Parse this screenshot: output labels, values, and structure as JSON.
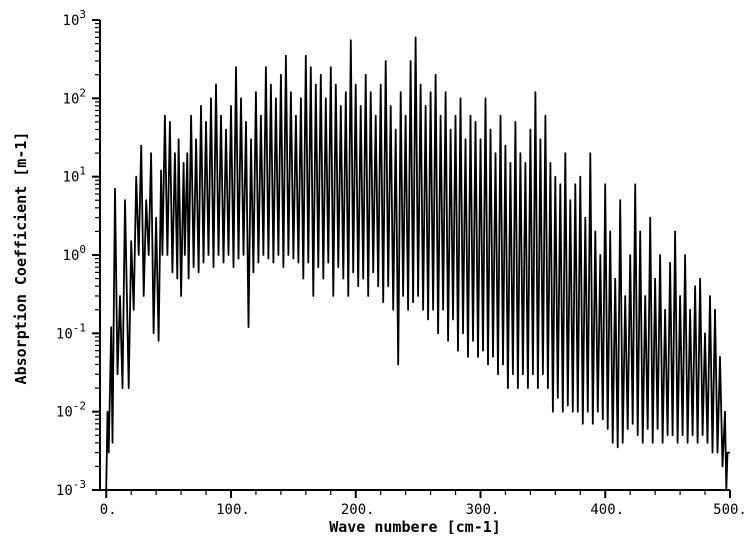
{
  "chart_data": {
    "type": "line",
    "title": "",
    "xlabel": "Wave numbere [cm-1]",
    "ylabel": "Absorption Coefficient [m-1]",
    "xlim": [
      -5,
      500
    ],
    "ylim": [
      0.001,
      1000
    ],
    "yscale": "log",
    "grid": false,
    "x_ticks": [
      {
        "value": 0,
        "label": "0."
      },
      {
        "value": 100,
        "label": "100."
      },
      {
        "value": 200,
        "label": "200."
      },
      {
        "value": 300,
        "label": "300."
      },
      {
        "value": 400,
        "label": "400."
      },
      {
        "value": 500,
        "label": "500."
      }
    ],
    "y_ticks": [
      {
        "value": 0.001,
        "base": "10",
        "exp": "-3"
      },
      {
        "value": 0.01,
        "base": "10",
        "exp": "-2"
      },
      {
        "value": 0.1,
        "base": "10",
        "exp": "-1"
      },
      {
        "value": 1,
        "base": "10",
        "exp": "0"
      },
      {
        "value": 10,
        "base": "10",
        "exp": "1"
      },
      {
        "value": 100,
        "base": "10",
        "exp": "2"
      },
      {
        "value": 1000,
        "base": "10",
        "exp": "3"
      }
    ],
    "series": [
      {
        "color": "#000000",
        "peaks": [
          {
            "x": 1,
            "y": 0.01
          },
          {
            "x": 4,
            "y": 0.12
          },
          {
            "x": 7,
            "y": 7
          },
          {
            "x": 11,
            "y": 0.3
          },
          {
            "x": 15,
            "y": 5
          },
          {
            "x": 20,
            "y": 1.5
          },
          {
            "x": 24,
            "y": 10
          },
          {
            "x": 28,
            "y": 25
          },
          {
            "x": 32,
            "y": 5
          },
          {
            "x": 36,
            "y": 20
          },
          {
            "x": 40,
            "y": 3
          },
          {
            "x": 44,
            "y": 12
          },
          {
            "x": 47,
            "y": 60
          },
          {
            "x": 51,
            "y": 50
          },
          {
            "x": 55,
            "y": 20
          },
          {
            "x": 58,
            "y": 30
          },
          {
            "x": 62,
            "y": 15
          },
          {
            "x": 65,
            "y": 20
          },
          {
            "x": 68,
            "y": 60
          },
          {
            "x": 72,
            "y": 30
          },
          {
            "x": 76,
            "y": 80
          },
          {
            "x": 80,
            "y": 50
          },
          {
            "x": 84,
            "y": 100
          },
          {
            "x": 88,
            "y": 150
          },
          {
            "x": 92,
            "y": 60
          },
          {
            "x": 96,
            "y": 40
          },
          {
            "x": 100,
            "y": 80
          },
          {
            "x": 104,
            "y": 250
          },
          {
            "x": 108,
            "y": 100
          },
          {
            "x": 112,
            "y": 50
          },
          {
            "x": 116,
            "y": 30
          },
          {
            "x": 120,
            "y": 120
          },
          {
            "x": 124,
            "y": 60
          },
          {
            "x": 128,
            "y": 250
          },
          {
            "x": 132,
            "y": 150
          },
          {
            "x": 136,
            "y": 100
          },
          {
            "x": 140,
            "y": 200
          },
          {
            "x": 144,
            "y": 350
          },
          {
            "x": 148,
            "y": 120
          },
          {
            "x": 152,
            "y": 60
          },
          {
            "x": 156,
            "y": 100
          },
          {
            "x": 160,
            "y": 350
          },
          {
            "x": 164,
            "y": 250
          },
          {
            "x": 168,
            "y": 150
          },
          {
            "x": 172,
            "y": 200
          },
          {
            "x": 176,
            "y": 100
          },
          {
            "x": 180,
            "y": 250
          },
          {
            "x": 184,
            "y": 150
          },
          {
            "x": 188,
            "y": 80
          },
          {
            "x": 192,
            "y": 120
          },
          {
            "x": 196,
            "y": 550
          },
          {
            "x": 200,
            "y": 150
          },
          {
            "x": 204,
            "y": 80
          },
          {
            "x": 208,
            "y": 200
          },
          {
            "x": 212,
            "y": 120
          },
          {
            "x": 216,
            "y": 60
          },
          {
            "x": 220,
            "y": 150
          },
          {
            "x": 224,
            "y": 300
          },
          {
            "x": 228,
            "y": 80
          },
          {
            "x": 232,
            "y": 40
          },
          {
            "x": 236,
            "y": 120
          },
          {
            "x": 240,
            "y": 60
          },
          {
            "x": 244,
            "y": 300
          },
          {
            "x": 248,
            "y": 600
          },
          {
            "x": 252,
            "y": 150
          },
          {
            "x": 256,
            "y": 80
          },
          {
            "x": 260,
            "y": 120
          },
          {
            "x": 264,
            "y": 200
          },
          {
            "x": 268,
            "y": 60
          },
          {
            "x": 272,
            "y": 120
          },
          {
            "x": 276,
            "y": 40
          },
          {
            "x": 280,
            "y": 60
          },
          {
            "x": 284,
            "y": 100
          },
          {
            "x": 288,
            "y": 30
          },
          {
            "x": 292,
            "y": 60
          },
          {
            "x": 296,
            "y": 50
          },
          {
            "x": 300,
            "y": 30
          },
          {
            "x": 304,
            "y": 100
          },
          {
            "x": 308,
            "y": 40
          },
          {
            "x": 312,
            "y": 20
          },
          {
            "x": 316,
            "y": 60
          },
          {
            "x": 320,
            "y": 25
          },
          {
            "x": 324,
            "y": 15
          },
          {
            "x": 328,
            "y": 50
          },
          {
            "x": 332,
            "y": 20
          },
          {
            "x": 336,
            "y": 15
          },
          {
            "x": 340,
            "y": 40
          },
          {
            "x": 344,
            "y": 120
          },
          {
            "x": 348,
            "y": 30
          },
          {
            "x": 352,
            "y": 60
          },
          {
            "x": 356,
            "y": 15
          },
          {
            "x": 360,
            "y": 10
          },
          {
            "x": 364,
            "y": 8
          },
          {
            "x": 368,
            "y": 20
          },
          {
            "x": 372,
            "y": 5
          },
          {
            "x": 376,
            "y": 8
          },
          {
            "x": 380,
            "y": 10
          },
          {
            "x": 384,
            "y": 3
          },
          {
            "x": 388,
            "y": 20
          },
          {
            "x": 392,
            "y": 2
          },
          {
            "x": 396,
            "y": 1
          },
          {
            "x": 400,
            "y": 8
          },
          {
            "x": 404,
            "y": 2
          },
          {
            "x": 408,
            "y": 0.5
          },
          {
            "x": 412,
            "y": 5
          },
          {
            "x": 416,
            "y": 0.3
          },
          {
            "x": 420,
            "y": 1
          },
          {
            "x": 424,
            "y": 8
          },
          {
            "x": 428,
            "y": 2
          },
          {
            "x": 432,
            "y": 0.3
          },
          {
            "x": 436,
            "y": 3
          },
          {
            "x": 440,
            "y": 0.5
          },
          {
            "x": 444,
            "y": 1
          },
          {
            "x": 448,
            "y": 0.2
          },
          {
            "x": 452,
            "y": 0.8
          },
          {
            "x": 456,
            "y": 2
          },
          {
            "x": 460,
            "y": 0.3
          },
          {
            "x": 464,
            "y": 1
          },
          {
            "x": 468,
            "y": 0.2
          },
          {
            "x": 472,
            "y": 0.4
          },
          {
            "x": 476,
            "y": 0.5
          },
          {
            "x": 480,
            "y": 0.1
          },
          {
            "x": 484,
            "y": 0.3
          },
          {
            "x": 488,
            "y": 0.2
          },
          {
            "x": 492,
            "y": 0.05
          },
          {
            "x": 496,
            "y": 0.01
          },
          {
            "x": 498,
            "y": 0.003
          }
        ],
        "valleys": [
          {
            "x": 0,
            "y": 0.001
          },
          {
            "x": 2,
            "y": 0.003
          },
          {
            "x": 5,
            "y": 0.004
          },
          {
            "x": 9,
            "y": 0.03
          },
          {
            "x": 13,
            "y": 0.02
          },
          {
            "x": 18,
            "y": 0.02
          },
          {
            "x": 22,
            "y": 0.2
          },
          {
            "x": 26,
            "y": 1
          },
          {
            "x": 30,
            "y": 0.3
          },
          {
            "x": 34,
            "y": 1
          },
          {
            "x": 38,
            "y": 0.1
          },
          {
            "x": 42,
            "y": 0.08
          },
          {
            "x": 45,
            "y": 1
          },
          {
            "x": 49,
            "y": 1
          },
          {
            "x": 53,
            "y": 0.6
          },
          {
            "x": 57,
            "y": 0.5
          },
          {
            "x": 60,
            "y": 0.3
          },
          {
            "x": 63,
            "y": 1
          },
          {
            "x": 66,
            "y": 0.5
          },
          {
            "x": 70,
            "y": 0.7
          },
          {
            "x": 74,
            "y": 0.6
          },
          {
            "x": 78,
            "y": 0.8
          },
          {
            "x": 82,
            "y": 1
          },
          {
            "x": 86,
            "y": 0.7
          },
          {
            "x": 90,
            "y": 1
          },
          {
            "x": 94,
            "y": 0.8
          },
          {
            "x": 98,
            "y": 1
          },
          {
            "x": 102,
            "y": 0.7
          },
          {
            "x": 106,
            "y": 0.9
          },
          {
            "x": 110,
            "y": 1
          },
          {
            "x": 114,
            "y": 0.12
          },
          {
            "x": 118,
            "y": 0.6
          },
          {
            "x": 122,
            "y": 0.8
          },
          {
            "x": 126,
            "y": 1
          },
          {
            "x": 130,
            "y": 0.9
          },
          {
            "x": 134,
            "y": 0.8
          },
          {
            "x": 138,
            "y": 1
          },
          {
            "x": 142,
            "y": 0.7
          },
          {
            "x": 146,
            "y": 1
          },
          {
            "x": 150,
            "y": 0.9
          },
          {
            "x": 154,
            "y": 0.8
          },
          {
            "x": 158,
            "y": 0.5
          },
          {
            "x": 162,
            "y": 0.8
          },
          {
            "x": 166,
            "y": 0.3
          },
          {
            "x": 170,
            "y": 0.7
          },
          {
            "x": 174,
            "y": 0.5
          },
          {
            "x": 178,
            "y": 0.8
          },
          {
            "x": 182,
            "y": 0.3
          },
          {
            "x": 186,
            "y": 0.7
          },
          {
            "x": 190,
            "y": 0.5
          },
          {
            "x": 194,
            "y": 0.3
          },
          {
            "x": 198,
            "y": 0.6
          },
          {
            "x": 202,
            "y": 0.4
          },
          {
            "x": 206,
            "y": 0.5
          },
          {
            "x": 210,
            "y": 0.3
          },
          {
            "x": 214,
            "y": 0.6
          },
          {
            "x": 218,
            "y": 0.4
          },
          {
            "x": 222,
            "y": 0.25
          },
          {
            "x": 226,
            "y": 0.4
          },
          {
            "x": 230,
            "y": 0.2
          },
          {
            "x": 234,
            "y": 0.04
          },
          {
            "x": 238,
            "y": 0.3
          },
          {
            "x": 242,
            "y": 0.2
          },
          {
            "x": 246,
            "y": 0.25
          },
          {
            "x": 250,
            "y": 0.3
          },
          {
            "x": 254,
            "y": 0.2
          },
          {
            "x": 258,
            "y": 0.15
          },
          {
            "x": 262,
            "y": 0.2
          },
          {
            "x": 266,
            "y": 0.1
          },
          {
            "x": 270,
            "y": 0.2
          },
          {
            "x": 274,
            "y": 0.08
          },
          {
            "x": 278,
            "y": 0.15
          },
          {
            "x": 282,
            "y": 0.06
          },
          {
            "x": 286,
            "y": 0.1
          },
          {
            "x": 290,
            "y": 0.05
          },
          {
            "x": 294,
            "y": 0.08
          },
          {
            "x": 298,
            "y": 0.05
          },
          {
            "x": 302,
            "y": 0.06
          },
          {
            "x": 306,
            "y": 0.04
          },
          {
            "x": 310,
            "y": 0.05
          },
          {
            "x": 314,
            "y": 0.03
          },
          {
            "x": 318,
            "y": 0.04
          },
          {
            "x": 322,
            "y": 0.02
          },
          {
            "x": 326,
            "y": 0.03
          },
          {
            "x": 330,
            "y": 0.02
          },
          {
            "x": 334,
            "y": 0.03
          },
          {
            "x": 338,
            "y": 0.02
          },
          {
            "x": 342,
            "y": 0.03
          },
          {
            "x": 346,
            "y": 0.02
          },
          {
            "x": 350,
            "y": 0.03
          },
          {
            "x": 354,
            "y": 0.02
          },
          {
            "x": 358,
            "y": 0.01
          },
          {
            "x": 362,
            "y": 0.015
          },
          {
            "x": 366,
            "y": 0.01
          },
          {
            "x": 370,
            "y": 0.012
          },
          {
            "x": 374,
            "y": 0.01
          },
          {
            "x": 378,
            "y": 0.01
          },
          {
            "x": 382,
            "y": 0.007
          },
          {
            "x": 386,
            "y": 0.01
          },
          {
            "x": 390,
            "y": 0.007
          },
          {
            "x": 394,
            "y": 0.01
          },
          {
            "x": 398,
            "y": 0.008
          },
          {
            "x": 402,
            "y": 0.006
          },
          {
            "x": 406,
            "y": 0.004
          },
          {
            "x": 410,
            "y": 0.0035
          },
          {
            "x": 414,
            "y": 0.004
          },
          {
            "x": 418,
            "y": 0.006
          },
          {
            "x": 422,
            "y": 0.007
          },
          {
            "x": 426,
            "y": 0.005
          },
          {
            "x": 430,
            "y": 0.004
          },
          {
            "x": 434,
            "y": 0.006
          },
          {
            "x": 438,
            "y": 0.004
          },
          {
            "x": 442,
            "y": 0.006
          },
          {
            "x": 446,
            "y": 0.004
          },
          {
            "x": 450,
            "y": 0.005
          },
          {
            "x": 454,
            "y": 0.005
          },
          {
            "x": 458,
            "y": 0.004
          },
          {
            "x": 462,
            "y": 0.005
          },
          {
            "x": 466,
            "y": 0.004
          },
          {
            "x": 470,
            "y": 0.005
          },
          {
            "x": 474,
            "y": 0.004
          },
          {
            "x": 478,
            "y": 0.005
          },
          {
            "x": 482,
            "y": 0.004
          },
          {
            "x": 486,
            "y": 0.003
          },
          {
            "x": 490,
            "y": 0.003
          },
          {
            "x": 494,
            "y": 0.002
          },
          {
            "x": 497,
            "y": 0.001
          },
          {
            "x": 500,
            "y": 0.003
          }
        ]
      }
    ]
  }
}
